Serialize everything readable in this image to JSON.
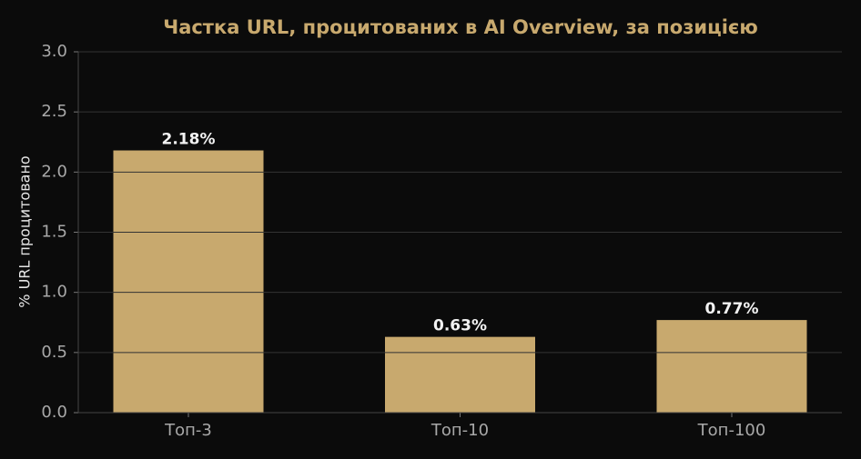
{
  "chart_data": {
    "type": "bar",
    "title": "Частка URL, процитованих в AI Overview, за позицією",
    "y_label": "% URL процитовано",
    "categories": [
      "Топ-3",
      "Топ-10",
      "Топ-100"
    ],
    "values": [
      2.18,
      0.63,
      0.77
    ],
    "value_labels": [
      "2.18%",
      "0.63%",
      "0.77%"
    ],
    "color": "#c8a96e",
    "ylim": [
      0,
      3
    ],
    "yticks": [
      {
        "value": 0,
        "label": "0.0"
      },
      0.5,
      {
        "value": 1,
        "label": "1.0"
      },
      1.5,
      {
        "value": 2,
        "label": "2.0"
      },
      2.5,
      {
        "value": 3,
        "label": "3.0"
      }
    ],
    "grid": true
  }
}
